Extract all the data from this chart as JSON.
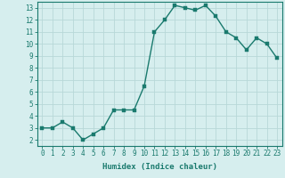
{
  "x": [
    0,
    1,
    2,
    3,
    4,
    5,
    6,
    7,
    8,
    9,
    10,
    11,
    12,
    13,
    14,
    15,
    16,
    17,
    18,
    19,
    20,
    21,
    22,
    23
  ],
  "y": [
    3.0,
    3.0,
    3.5,
    3.0,
    2.0,
    2.5,
    3.0,
    4.5,
    4.5,
    4.5,
    6.5,
    11.0,
    12.0,
    13.2,
    13.0,
    12.8,
    13.2,
    12.3,
    11.0,
    10.5,
    9.5,
    10.5,
    10.0,
    8.8
  ],
  "line_color": "#1a7a6e",
  "marker_color": "#1a7a6e",
  "bg_color": "#d6eeee",
  "grid_color": "#b8d8d8",
  "xlabel": "Humidex (Indice chaleur)",
  "xlim": [
    -0.5,
    23.5
  ],
  "ylim": [
    1.5,
    13.5
  ],
  "yticks": [
    2,
    3,
    4,
    5,
    6,
    7,
    8,
    9,
    10,
    11,
    12,
    13
  ],
  "xticks": [
    0,
    1,
    2,
    3,
    4,
    5,
    6,
    7,
    8,
    9,
    10,
    11,
    12,
    13,
    14,
    15,
    16,
    17,
    18,
    19,
    20,
    21,
    22,
    23
  ],
  "xtick_labels": [
    "0",
    "1",
    "2",
    "3",
    "4",
    "5",
    "6",
    "7",
    "8",
    "9",
    "10",
    "11",
    "12",
    "13",
    "14",
    "15",
    "16",
    "17",
    "18",
    "19",
    "20",
    "21",
    "22",
    "23"
  ],
  "tick_color": "#1a7a6e",
  "border_color": "#1a7a6e",
  "xlabel_color": "#1a7a6e",
  "marker_size": 2.5,
  "line_width": 1.0,
  "tick_fontsize": 5.5,
  "xlabel_fontsize": 6.5
}
